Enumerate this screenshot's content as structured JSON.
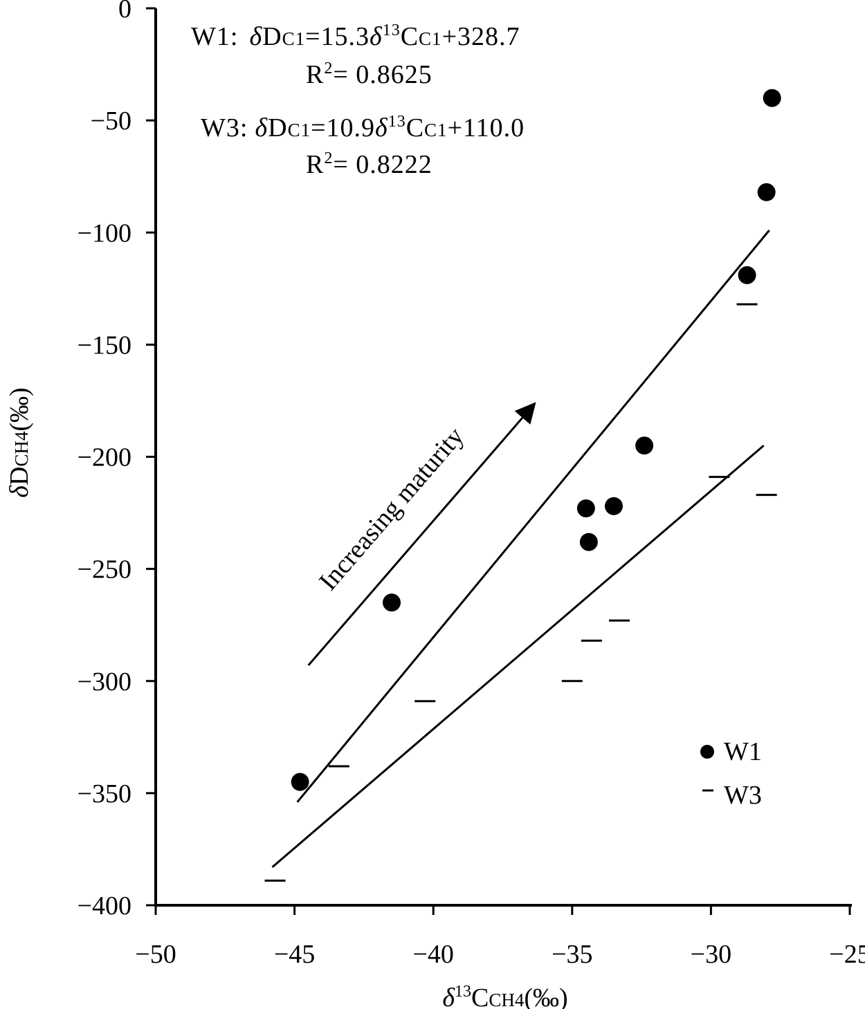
{
  "chart_data": {
    "type": "scatter",
    "xlabel": {
      "prefix": "δ",
      "sup": "13",
      "main": "C",
      "sub": "CH4",
      "unit": "(‰)"
    },
    "ylabel": {
      "prefix": "δ",
      "main": "D",
      "sub": "CH4",
      "unit": "(‰)"
    },
    "xlim": [
      -50,
      -25
    ],
    "ylim": [
      -400,
      0
    ],
    "x_ticks": [
      -50,
      -45,
      -40,
      -35,
      -30,
      -25
    ],
    "y_ticks": [
      0,
      -50,
      -100,
      -150,
      -200,
      -250,
      -300,
      -350,
      -400
    ],
    "x_tick_labels": [
      "−50",
      "−45",
      "−40",
      "−35",
      "−30",
      "−25"
    ],
    "y_tick_labels": [
      "0",
      "−50",
      "−100",
      "−150",
      "−200",
      "−250",
      "−300",
      "−350",
      "−400"
    ],
    "series": [
      {
        "name": "W1",
        "marker": "circle",
        "points": [
          [
            -44.8,
            -345
          ],
          [
            -41.5,
            -265
          ],
          [
            -34.5,
            -223
          ],
          [
            -34.4,
            -238
          ],
          [
            -33.5,
            -222
          ],
          [
            -32.4,
            -195
          ],
          [
            -28.7,
            -119
          ],
          [
            -28.0,
            -82
          ],
          [
            -27.8,
            -40
          ]
        ]
      },
      {
        "name": "W3",
        "marker": "dash",
        "points": [
          [
            -45.7,
            -389
          ],
          [
            -43.4,
            -338
          ],
          [
            -40.3,
            -309
          ],
          [
            -35.0,
            -300
          ],
          [
            -34.3,
            -282
          ],
          [
            -33.3,
            -273
          ],
          [
            -29.7,
            -209
          ],
          [
            -28.7,
            -132
          ],
          [
            -28.0,
            -217
          ]
        ]
      }
    ],
    "fit_lines": [
      {
        "series": "W1",
        "x": [
          -44.9,
          -27.9
        ],
        "y": [
          -354,
          -99
        ]
      },
      {
        "series": "W3",
        "x": [
          -45.8,
          -28.1
        ],
        "y": [
          -383,
          -195
        ]
      }
    ],
    "equations": [
      {
        "label": "W1",
        "sep": ":",
        "lhs_prefix": "δ",
        "lhs_main": "D",
        "lhs_sub": "C1",
        "rhs_coef": "=15.3",
        "rhs_prefix": "δ",
        "rhs_sup": "13",
        "rhs_main": "C",
        "rhs_sub": "C1",
        "rhs_tail": "+328.7",
        "r2_main": "R",
        "r2_sup": "2",
        "r2_value": "= 0.8625"
      },
      {
        "label": "W3",
        "sep": ":",
        "lhs_prefix": "δ",
        "lhs_main": "D",
        "lhs_sub": "C1",
        "rhs_coef": "=10.9",
        "rhs_prefix": "δ",
        "rhs_sup": "13",
        "rhs_main": "C",
        "rhs_sub": "C1",
        "rhs_tail": "+110.0",
        "r2_main": "R",
        "r2_sup": "2",
        "r2_value": "= 0.8222"
      }
    ],
    "annotations": [
      {
        "text": "Increasing maturity",
        "arrow_from": [
          -44.5,
          -293
        ],
        "arrow_to": [
          -36.4,
          -177
        ]
      }
    ],
    "legend": {
      "placement": "bottom-right",
      "entries": [
        {
          "label": "W1",
          "marker": "circle"
        },
        {
          "label": "W3",
          "marker": "dash"
        }
      ]
    },
    "grid": false
  }
}
